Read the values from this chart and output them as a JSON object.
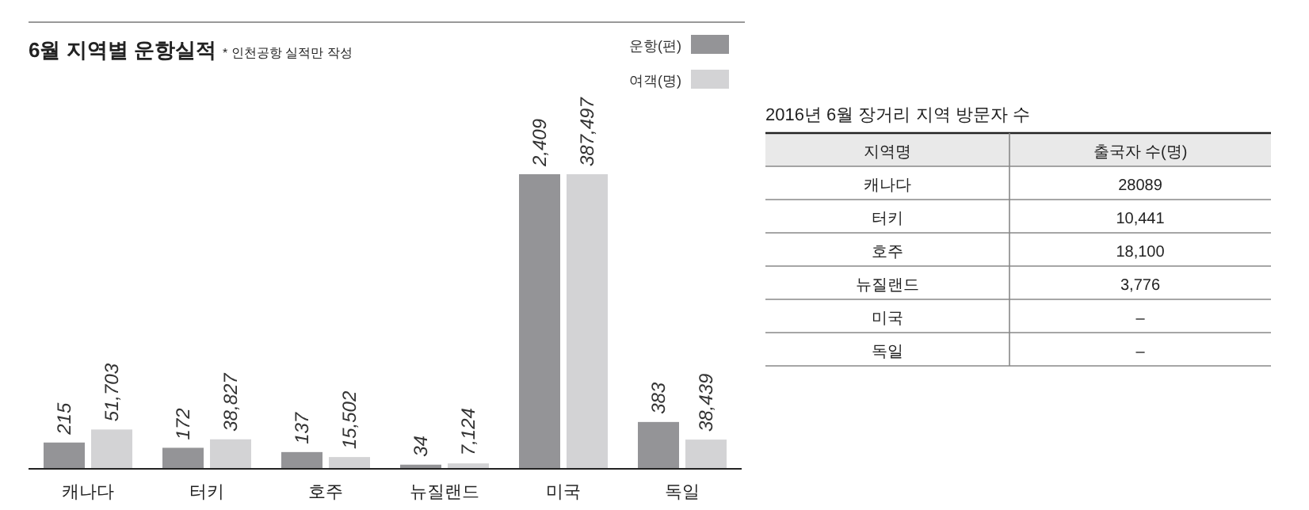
{
  "chart_data": [
    {
      "type": "bar",
      "title": "6월 지역별 운항실적",
      "subtitle": "* 인천공항 실적만 작성",
      "categories": [
        "캐나다",
        "터키",
        "호주",
        "뉴질랜드",
        "미국",
        "독일"
      ],
      "series": [
        {
          "name": "운항(편)",
          "color": "#949497",
          "values": [
            215,
            172,
            137,
            34,
            2409,
            383
          ],
          "value_labels": [
            "215",
            "172",
            "137",
            "34",
            "2,409",
            "383"
          ]
        },
        {
          "name": "여객(명)",
          "color": "#d3d3d5",
          "axis": "y2",
          "values": [
            51703,
            38827,
            15502,
            7124,
            387497,
            38439
          ],
          "value_labels": [
            "51,703",
            "38,827",
            "15,502",
            "7,124",
            "387,497",
            "38,439"
          ]
        }
      ],
      "legend": "top right"
    },
    {
      "type": "other",
      "title": "2016년 6월 장거리 지역 방문자 수",
      "annotations": [
        "지역명",
        "출국자 수(명)",
        "캐나다",
        "28089",
        "터키",
        "10,441",
        "호주",
        "18,100",
        "뉴질랜드",
        "3,776",
        "미국",
        "–",
        "독일",
        "–"
      ]
    }
  ]
}
